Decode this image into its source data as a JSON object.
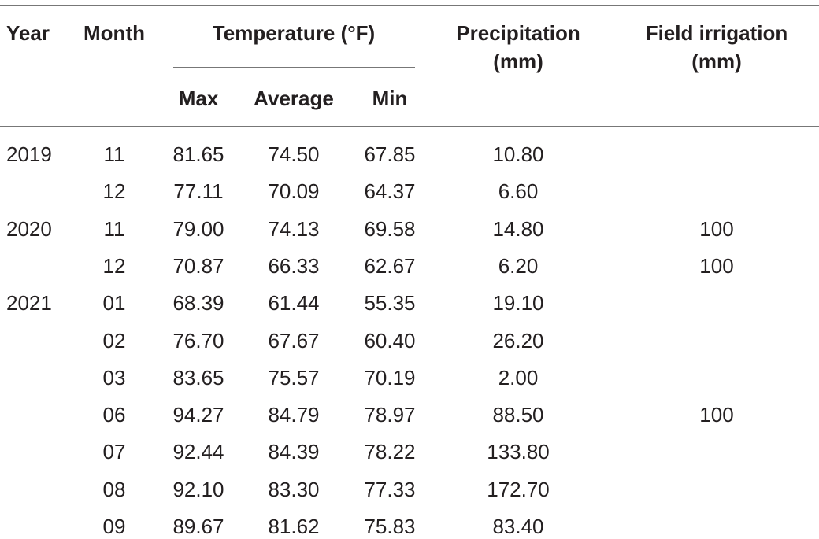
{
  "header": {
    "year": "Year",
    "month": "Month",
    "temperature": "Temperature (°F)",
    "max": "Max",
    "average": "Average",
    "min": "Min",
    "precipitation": "Precipitation (mm)",
    "irrigation": "Field irrigation (mm)"
  },
  "table": {
    "rows": [
      [
        "2019",
        "11",
        "81.65",
        "74.50",
        "67.85",
        "10.80",
        null
      ],
      [
        null,
        "12",
        "77.11",
        "70.09",
        "64.37",
        "6.60",
        null
      ],
      [
        "2020",
        "11",
        "79.00",
        "74.13",
        "69.58",
        "14.80",
        "100"
      ],
      [
        null,
        "12",
        "70.87",
        "66.33",
        "62.67",
        "6.20",
        "100"
      ],
      [
        "2021",
        "01",
        "68.39",
        "61.44",
        "55.35",
        "19.10",
        null
      ],
      [
        null,
        "02",
        "76.70",
        "67.67",
        "60.40",
        "26.20",
        null
      ],
      [
        null,
        "03",
        "83.65",
        "75.57",
        "70.19",
        "2.00",
        null
      ],
      [
        null,
        "06",
        "94.27",
        "84.79",
        "78.97",
        "88.50",
        "100"
      ],
      [
        null,
        "07",
        "92.44",
        "84.39",
        "78.22",
        "133.80",
        null
      ],
      [
        null,
        "08",
        "92.10",
        "83.30",
        "77.33",
        "172.70",
        null
      ],
      [
        null,
        "09",
        "89.67",
        "81.62",
        "75.83",
        "83.40",
        null
      ]
    ]
  }
}
